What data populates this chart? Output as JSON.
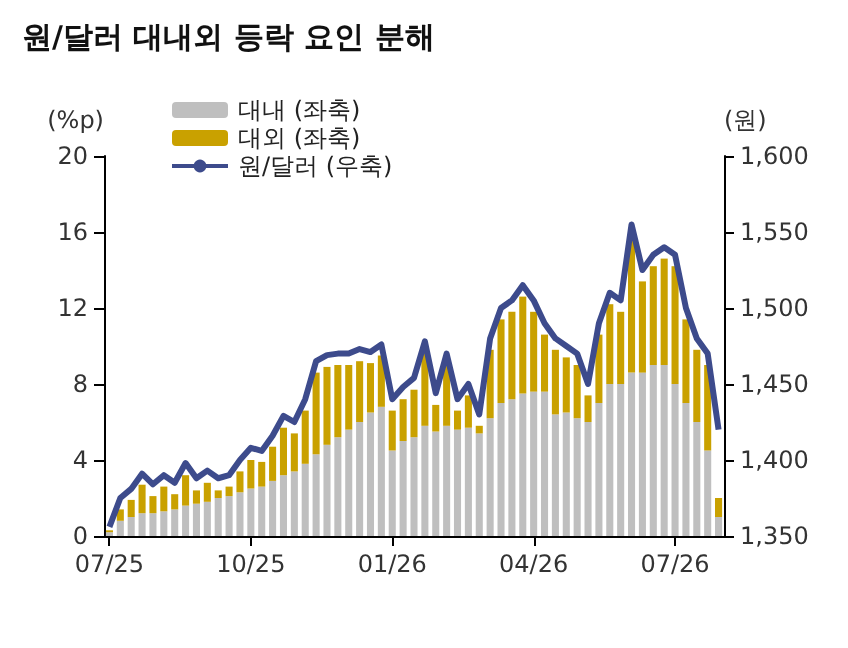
{
  "chart_data": {
    "type": "bar",
    "stacked": true,
    "title": "원/달러 대내외 등락 요인 분해",
    "ylabel": "(%p)",
    "y2label": "(원)",
    "categories": [
      "07/25",
      null,
      null,
      null,
      null,
      null,
      null,
      null,
      null,
      null,
      null,
      null,
      null,
      "10/25",
      null,
      null,
      null,
      null,
      null,
      null,
      null,
      null,
      null,
      null,
      null,
      null,
      "01/26",
      null,
      null,
      null,
      null,
      null,
      null,
      null,
      null,
      null,
      null,
      null,
      null,
      "04/26",
      null,
      null,
      null,
      null,
      null,
      null,
      null,
      null,
      null,
      null,
      null,
      null,
      "07/26",
      null,
      null,
      null,
      null
    ],
    "series": [
      {
        "name": "대내 (좌축)",
        "color": "#bfbfbf",
        "values": [
          0.2,
          0.8,
          1,
          1.2,
          1.2,
          1.3,
          1.4,
          1.6,
          1.7,
          1.8,
          2,
          2.1,
          2.3,
          2.5,
          2.6,
          2.9,
          3.2,
          3.4,
          3.8,
          4.3,
          4.8,
          5.2,
          5.6,
          6,
          6.5,
          6.8,
          4.5,
          5,
          5.2,
          5.8,
          5.5,
          5.8,
          5.6,
          5.7,
          5.4,
          6.2,
          7,
          7.2,
          7.5,
          7.6,
          7.6,
          6.4,
          6.5,
          6.2,
          6,
          7,
          8,
          8,
          8.6,
          8.6,
          9,
          9,
          8,
          7,
          6,
          4.5,
          1
        ]
      },
      {
        "name": "대외 (좌축)",
        "color": "#c9a100",
        "values": [
          0.1,
          0.6,
          0.9,
          1.5,
          0.9,
          1.3,
          0.8,
          1.6,
          0.7,
          1,
          0.4,
          0.5,
          1.1,
          1.5,
          1.3,
          1.8,
          2.5,
          2,
          2.8,
          4.3,
          4.1,
          3.8,
          3.4,
          3.2,
          2.6,
          2.7,
          2.1,
          2.2,
          2.5,
          3.8,
          1.4,
          3.2,
          1,
          1.7,
          0.4,
          3.6,
          4.4,
          4.6,
          5.1,
          4.2,
          3,
          3.4,
          2.9,
          2.8,
          1.4,
          3.6,
          4.2,
          3.8,
          7.2,
          4.8,
          5.2,
          5.6,
          6.2,
          4.4,
          3.8,
          4.5,
          1
        ]
      },
      {
        "name": "원/달러 (우축)",
        "type": "line",
        "axis": "y2",
        "color": "#3d4b8c",
        "values": [
          1356,
          1375,
          1381,
          1391,
          1384,
          1390,
          1385,
          1398,
          1388,
          1393,
          1388,
          1390,
          1400,
          1408,
          1406,
          1416,
          1429,
          1425,
          1440,
          1465,
          1469,
          1470,
          1470,
          1473,
          1471,
          1476,
          1440,
          1448,
          1454,
          1478,
          1444,
          1470,
          1440,
          1450,
          1430,
          1480,
          1500,
          1505,
          1515,
          1505,
          1490,
          1480,
          1475,
          1470,
          1450,
          1490,
          1510,
          1505,
          1555,
          1525,
          1535,
          1540,
          1535,
          1500,
          1480,
          1470,
          1420
        ]
      }
    ],
    "ylim": [
      0,
      20
    ],
    "yticks": [
      0,
      4,
      8,
      12,
      16,
      20
    ],
    "y2lim": [
      1350,
      1600
    ],
    "y2ticks": [
      {
        "value": 1350,
        "label": "1,350"
      },
      {
        "value": 1400,
        "label": "1,400"
      },
      {
        "value": 1450,
        "label": "1,450"
      },
      {
        "value": 1500,
        "label": "1,500"
      },
      {
        "value": 1550,
        "label": "1,550"
      },
      {
        "value": 1600,
        "label": "1,600"
      }
    ],
    "legend": "top left",
    "grid": false,
    "marker": "none"
  }
}
